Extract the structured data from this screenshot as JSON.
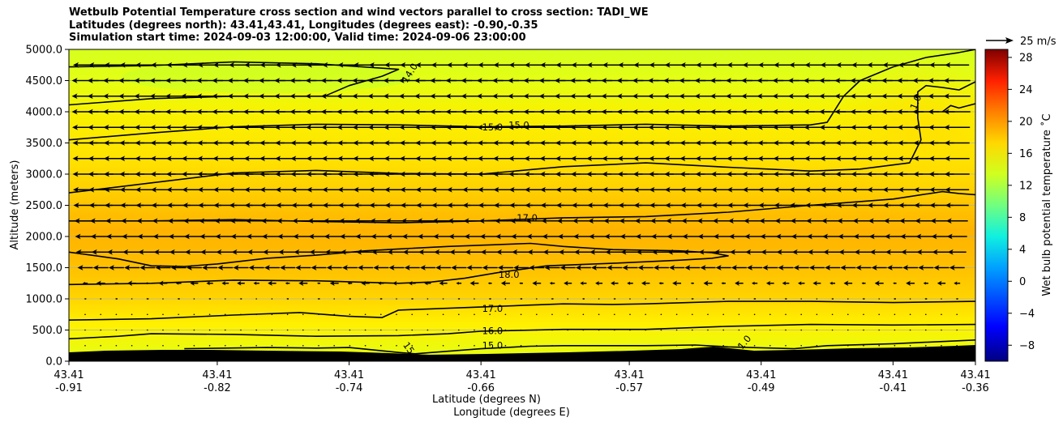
{
  "header": {
    "title_line1": "Wetbulb Potential Temperature cross section and wind vectors parallel to cross section: TADI_WE",
    "title_line2": "Latitudes (degrees north): 43.41,43.41, Longitudes (degrees east): -0.90,-0.35",
    "title_line3": "Simulation start time: 2024-09-03 12:00:00, Valid time: 2024-09-06 23:00:00"
  },
  "chart_data": {
    "type": "heatmap",
    "subtype": "cross-section contour with wind vectors",
    "ylabel": "Altitude (meters)",
    "xlabel_line1": "Latitude (degrees N)",
    "xlabel_line2": "Longitude (degrees E)",
    "ylim": [
      0,
      5000
    ],
    "xlim": [
      -0.91,
      -0.36
    ],
    "yticks": [
      {
        "value": 0,
        "label": "0.0"
      },
      {
        "value": 500,
        "label": "500.0"
      },
      {
        "value": 1000,
        "label": "1000.0"
      },
      {
        "value": 1500,
        "label": "1500.0"
      },
      {
        "value": 2000,
        "label": "2000.0"
      },
      {
        "value": 2500,
        "label": "2500.0"
      },
      {
        "value": 3000,
        "label": "3000.0"
      },
      {
        "value": 3500,
        "label": "3500.0"
      },
      {
        "value": 4000,
        "label": "4000.0"
      },
      {
        "value": 4500,
        "label": "4500.0"
      },
      {
        "value": 5000,
        "label": "5000.0"
      }
    ],
    "xticks": [
      {
        "lon": -0.91,
        "lat_label": "43.41",
        "lon_label": "-0.91"
      },
      {
        "lon": -0.82,
        "lat_label": "43.41",
        "lon_label": "-0.82"
      },
      {
        "lon": -0.74,
        "lat_label": "43.41",
        "lon_label": "-0.74"
      },
      {
        "lon": -0.66,
        "lat_label": "43.41",
        "lon_label": "-0.66"
      },
      {
        "lon": -0.57,
        "lat_label": "43.41",
        "lon_label": "-0.57"
      },
      {
        "lon": -0.49,
        "lat_label": "43.41",
        "lon_label": "-0.49"
      },
      {
        "lon": -0.41,
        "lat_label": "43.41",
        "lon_label": "-0.41"
      },
      {
        "lon": -0.36,
        "lat_label": "43.41",
        "lon_label": "-0.36"
      }
    ],
    "colorbar": {
      "label": "Wet bulb potential temperature $^\\circ$C",
      "label_display": "Wet bulb potential temperature ˚C",
      "range": [
        -10,
        29
      ],
      "ticks": [
        {
          "value": -8,
          "label": "−8"
        },
        {
          "value": -4,
          "label": "−4"
        },
        {
          "value": 0,
          "label": "0"
        },
        {
          "value": 4,
          "label": "4"
        },
        {
          "value": 8,
          "label": "8"
        },
        {
          "value": 12,
          "label": "12"
        },
        {
          "value": 16,
          "label": "16"
        },
        {
          "value": 20,
          "label": "20"
        },
        {
          "value": 24,
          "label": "24"
        },
        {
          "value": 28,
          "label": "28"
        }
      ]
    },
    "quiver_key": {
      "label": "25 m/s",
      "speed": 25
    },
    "contour_labels": [
      {
        "text": "14.0",
        "lon": -0.703,
        "alt": 4620,
        "rotate": -58
      },
      {
        "text": "15.0",
        "lon": -0.653,
        "alt": 3750,
        "rotate": 0
      },
      {
        "text": "15.0",
        "lon": -0.637,
        "alt": 3780,
        "rotate": 0
      },
      {
        "text": "17.0",
        "lon": -0.632,
        "alt": 2290,
        "rotate": 0
      },
      {
        "text": "18.0",
        "lon": -0.643,
        "alt": 1380,
        "rotate": 0
      },
      {
        "text": "17.0",
        "lon": -0.653,
        "alt": 840,
        "rotate": 0
      },
      {
        "text": "16.0",
        "lon": -0.653,
        "alt": 480,
        "rotate": 0
      },
      {
        "text": "15.0",
        "lon": -0.653,
        "alt": 250,
        "rotate": 0
      },
      {
        "text": "15",
        "lon": -0.704,
        "alt": 210,
        "rotate": 55
      },
      {
        "text": "1.0",
        "lon": -0.5,
        "alt": 300,
        "rotate": -50
      },
      {
        "text": "1.0",
        "lon": -0.396,
        "alt": 4150,
        "rotate": -68
      }
    ],
    "contours": [
      {
        "level": 14.0,
        "points": [
          [
            -0.91,
            4110
          ],
          [
            -0.86,
            4210
          ],
          [
            -0.81,
            4250
          ],
          [
            -0.76,
            4250
          ],
          [
            -0.755,
            4250
          ],
          [
            -0.74,
            4420
          ],
          [
            -0.72,
            4570
          ],
          [
            -0.71,
            4680
          ],
          [
            -0.76,
            4770
          ],
          [
            -0.81,
            4800
          ],
          [
            -0.86,
            4740
          ],
          [
            -0.91,
            4720
          ]
        ]
      },
      {
        "level": 15.0,
        "points": [
          [
            -0.91,
            3550
          ],
          [
            -0.86,
            3660
          ],
          [
            -0.81,
            3760
          ],
          [
            -0.76,
            3800
          ],
          [
            -0.71,
            3790
          ],
          [
            -0.66,
            3760
          ],
          [
            -0.61,
            3770
          ],
          [
            -0.56,
            3800
          ],
          [
            -0.51,
            3770
          ],
          [
            -0.46,
            3790
          ],
          [
            -0.45,
            3830
          ],
          [
            -0.44,
            4250
          ],
          [
            -0.43,
            4500
          ],
          [
            -0.41,
            4720
          ],
          [
            -0.39,
            4870
          ],
          [
            -0.37,
            4950
          ],
          [
            -0.36,
            5000
          ]
        ]
      },
      {
        "level": 15.0,
        "points": [
          [
            -0.36,
            4480
          ],
          [
            -0.37,
            4350
          ],
          [
            -0.38,
            4390
          ],
          [
            -0.39,
            4420
          ],
          [
            -0.395,
            4320
          ],
          [
            -0.395,
            3900
          ],
          [
            -0.393,
            3550
          ],
          [
            -0.4,
            3180
          ],
          [
            -0.43,
            3080
          ],
          [
            -0.46,
            3050
          ],
          [
            -0.51,
            3110
          ],
          [
            -0.56,
            3180
          ],
          [
            -0.61,
            3120
          ],
          [
            -0.66,
            3000
          ],
          [
            -0.71,
            3010
          ],
          [
            -0.76,
            3060
          ],
          [
            -0.81,
            3020
          ],
          [
            -0.86,
            2860
          ],
          [
            -0.91,
            2700
          ]
        ]
      },
      {
        "level": 15.0,
        "points": [
          [
            -0.38,
            4000
          ],
          [
            -0.375,
            4100
          ],
          [
            -0.37,
            4060
          ],
          [
            -0.36,
            4130
          ]
        ]
      },
      {
        "level": 17.0,
        "points": [
          [
            -0.91,
            2250
          ],
          [
            -0.86,
            2250
          ],
          [
            -0.81,
            2270
          ],
          [
            -0.76,
            2240
          ],
          [
            -0.71,
            2220
          ],
          [
            -0.66,
            2250
          ],
          [
            -0.61,
            2300
          ],
          [
            -0.56,
            2320
          ],
          [
            -0.51,
            2390
          ],
          [
            -0.46,
            2500
          ],
          [
            -0.41,
            2600
          ],
          [
            -0.38,
            2720
          ],
          [
            -0.37,
            2690
          ],
          [
            -0.36,
            2670
          ]
        ]
      },
      {
        "level": 18.0,
        "points": [
          [
            -0.91,
            1750
          ],
          [
            -0.88,
            1640
          ],
          [
            -0.86,
            1530
          ],
          [
            -0.84,
            1520
          ],
          [
            -0.82,
            1560
          ],
          [
            -0.79,
            1650
          ],
          [
            -0.76,
            1700
          ],
          [
            -0.73,
            1770
          ],
          [
            -0.71,
            1800
          ],
          [
            -0.68,
            1840
          ],
          [
            -0.66,
            1860
          ],
          [
            -0.63,
            1890
          ],
          [
            -0.61,
            1840
          ],
          [
            -0.58,
            1790
          ],
          [
            -0.54,
            1770
          ],
          [
            -0.52,
            1740
          ],
          [
            -0.51,
            1690
          ],
          [
            -0.52,
            1650
          ],
          [
            -0.54,
            1620
          ],
          [
            -0.58,
            1570
          ],
          [
            -0.62,
            1530
          ],
          [
            -0.65,
            1420
          ],
          [
            -0.67,
            1330
          ],
          [
            -0.69,
            1270
          ],
          [
            -0.71,
            1250
          ],
          [
            -0.76,
            1290
          ],
          [
            -0.81,
            1300
          ],
          [
            -0.86,
            1250
          ],
          [
            -0.91,
            1230
          ]
        ]
      },
      {
        "level": 17.0,
        "points": [
          [
            -0.91,
            660
          ],
          [
            -0.86,
            680
          ],
          [
            -0.81,
            740
          ],
          [
            -0.77,
            780
          ],
          [
            -0.74,
            720
          ],
          [
            -0.72,
            700
          ],
          [
            -0.71,
            820
          ],
          [
            -0.67,
            860
          ],
          [
            -0.63,
            900
          ],
          [
            -0.61,
            920
          ],
          [
            -0.58,
            910
          ],
          [
            -0.56,
            920
          ],
          [
            -0.51,
            960
          ],
          [
            -0.46,
            960
          ],
          [
            -0.41,
            940
          ],
          [
            -0.36,
            960
          ]
        ]
      },
      {
        "level": 16.0,
        "points": [
          [
            -0.91,
            360
          ],
          [
            -0.88,
            400
          ],
          [
            -0.86,
            440
          ],
          [
            -0.81,
            430
          ],
          [
            -0.76,
            400
          ],
          [
            -0.71,
            410
          ],
          [
            -0.68,
            440
          ],
          [
            -0.66,
            480
          ],
          [
            -0.61,
            510
          ],
          [
            -0.56,
            510
          ],
          [
            -0.51,
            560
          ],
          [
            -0.46,
            590
          ],
          [
            -0.41,
            580
          ],
          [
            -0.36,
            590
          ]
        ]
      },
      {
        "level": 15.0,
        "points": [
          [
            -0.84,
            200
          ],
          [
            -0.79,
            220
          ],
          [
            -0.76,
            210
          ],
          [
            -0.74,
            220
          ],
          [
            -0.71,
            140
          ],
          [
            -0.7,
            120
          ],
          [
            -0.66,
            200
          ],
          [
            -0.63,
            240
          ],
          [
            -0.61,
            250
          ],
          [
            -0.56,
            250
          ],
          [
            -0.53,
            260
          ],
          [
            -0.51,
            230
          ],
          [
            -0.47,
            200
          ],
          [
            -0.45,
            250
          ],
          [
            -0.41,
            280
          ],
          [
            -0.36,
            340
          ]
        ]
      }
    ]
  }
}
